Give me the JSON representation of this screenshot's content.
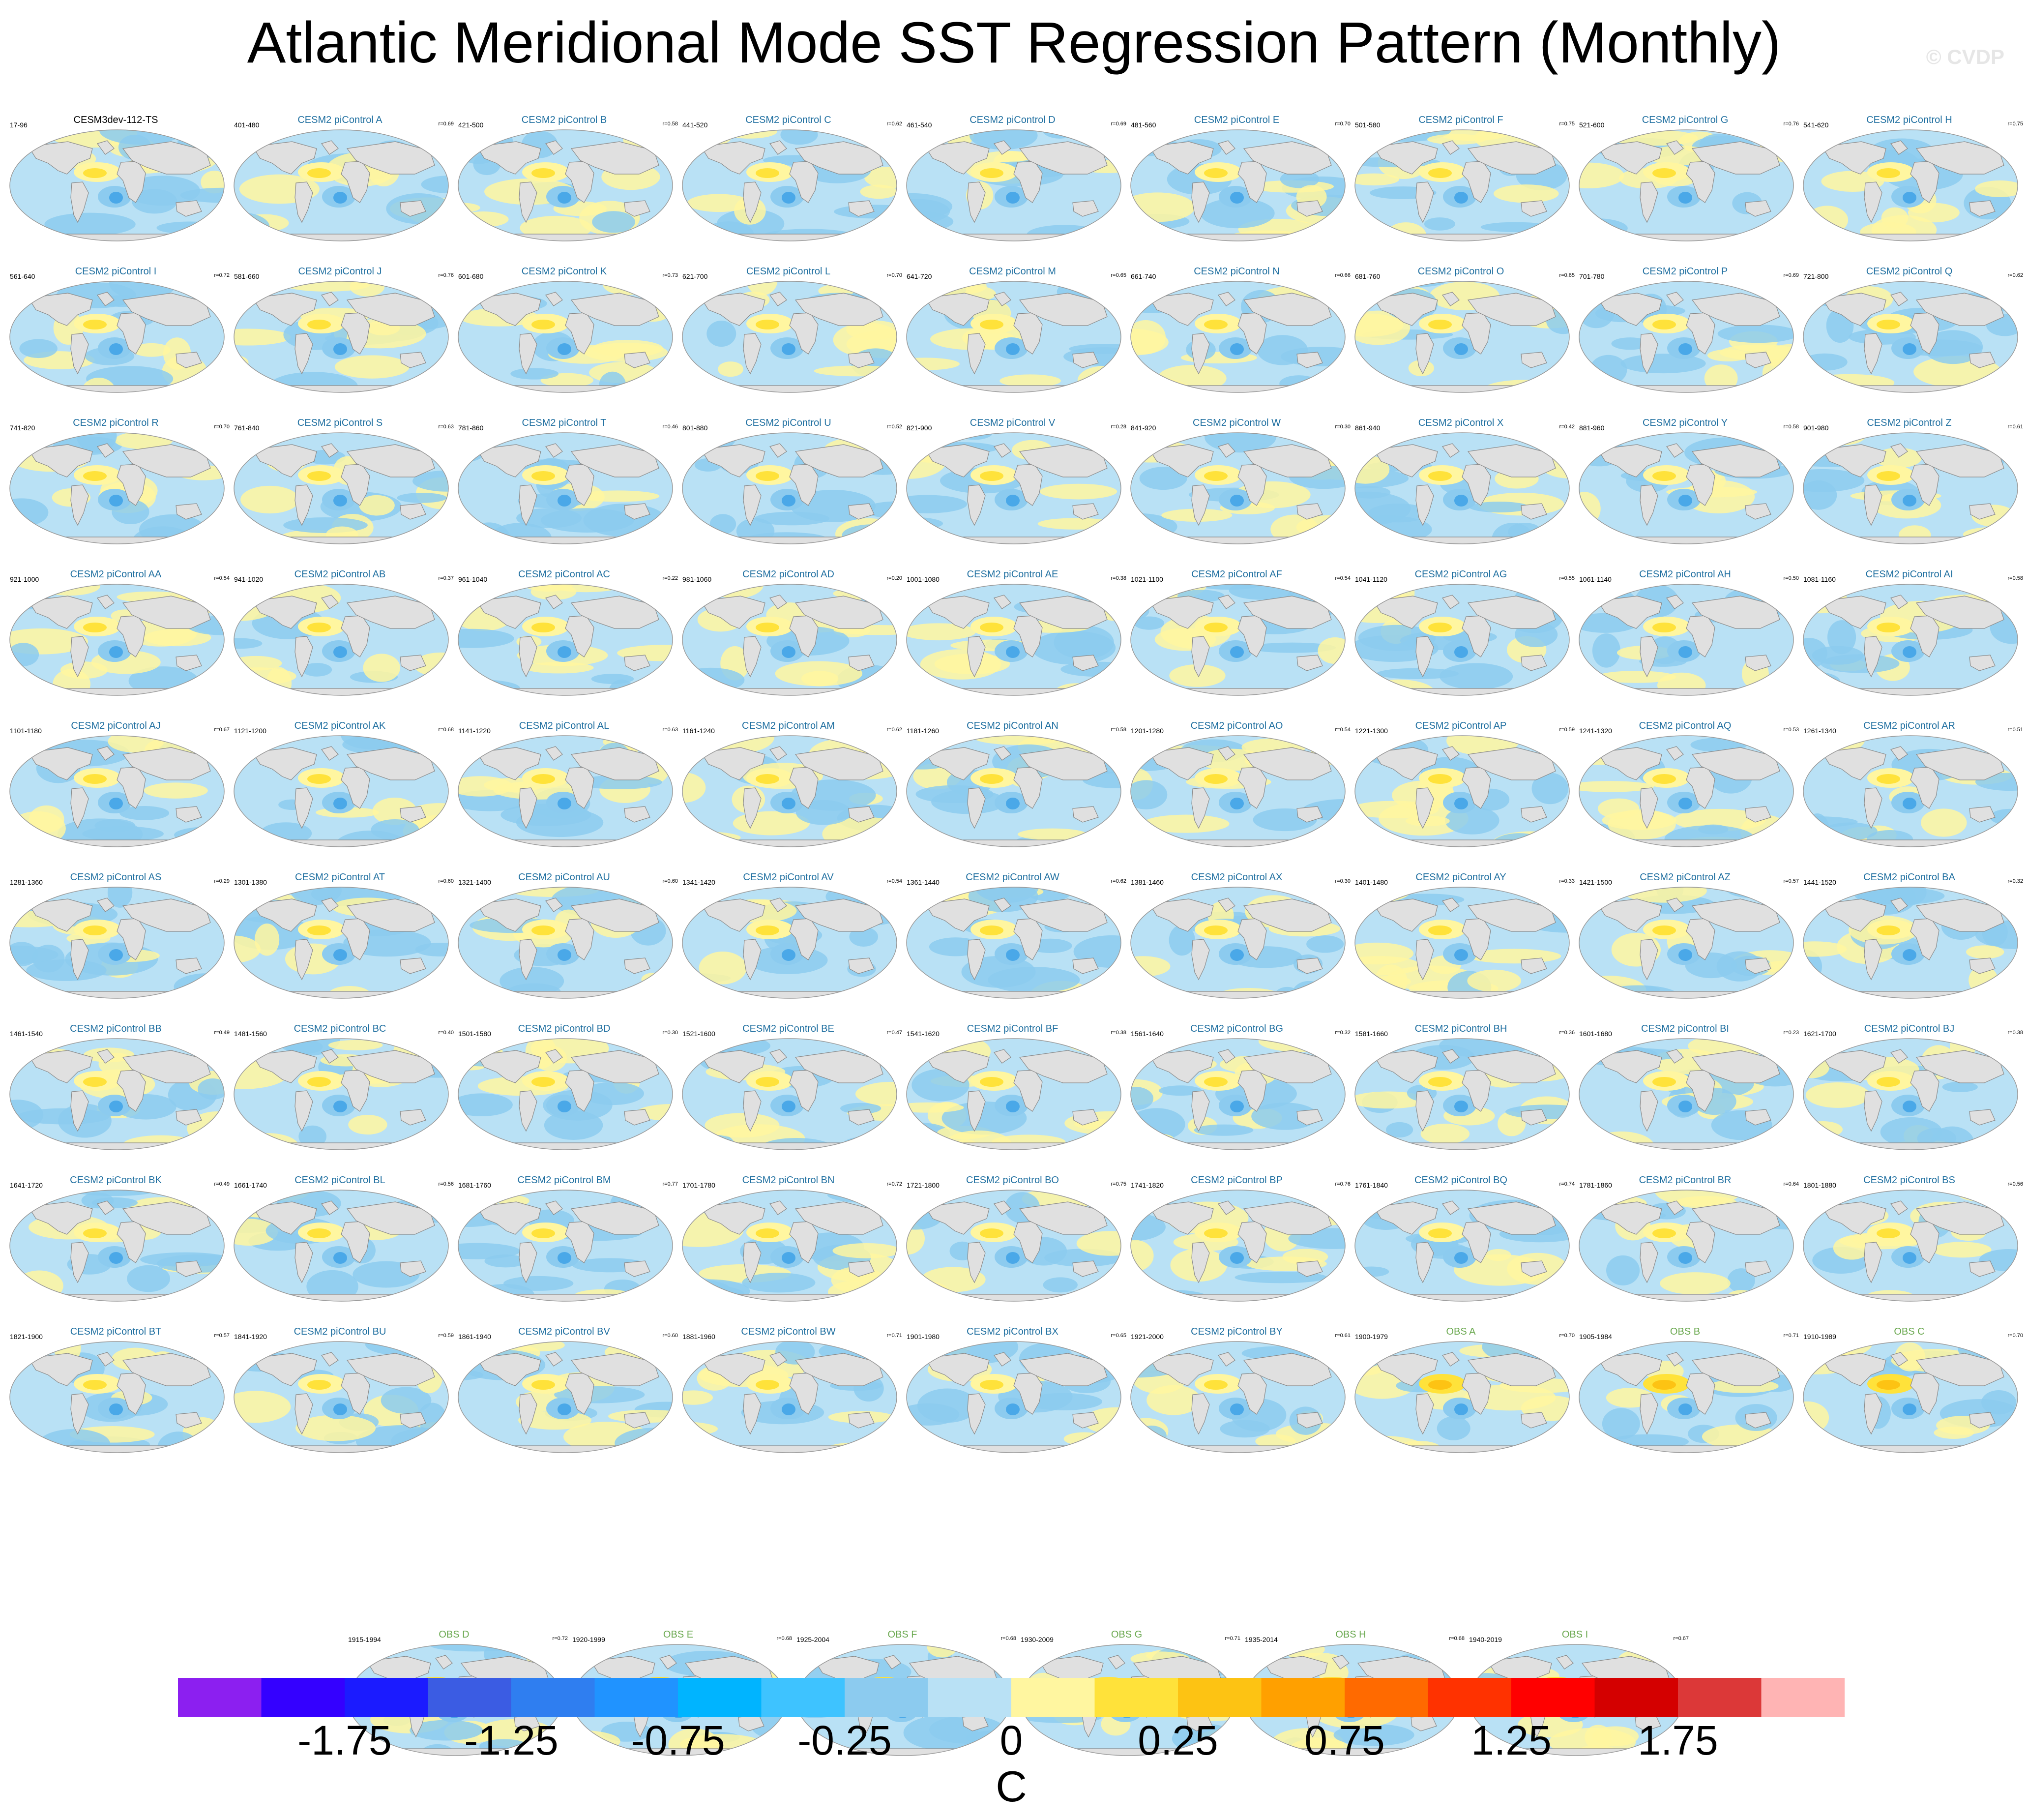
{
  "title": "Atlantic Meridional Mode SST Regression Pattern (Monthly)",
  "watermark": "© CVDP",
  "colors": {
    "model_title": "#1f6fa0",
    "obs_title": "#6aa84f",
    "land": "#e0e0e0",
    "ocean_neutral": "#b9e1f5",
    "positive_weak": "#fff6a0",
    "positive_mod": "#ffe23a",
    "negative_mod": "#8ccbef",
    "negative_strong": "#4aa8e8"
  },
  "chart_data": {
    "type": "map-grid",
    "variable": "SST regression on AMM index",
    "panels": [
      {
        "title": "CESM3dev-112-TS",
        "years": "17-96",
        "r": "",
        "kind": "ref"
      },
      {
        "title": "CESM2 piControl A",
        "years": "401-480",
        "r": "r=0.69",
        "kind": "model"
      },
      {
        "title": "CESM2 piControl B",
        "years": "421-500",
        "r": "r=0.58",
        "kind": "model"
      },
      {
        "title": "CESM2 piControl C",
        "years": "441-520",
        "r": "r=0.62",
        "kind": "model"
      },
      {
        "title": "CESM2 piControl D",
        "years": "461-540",
        "r": "r=0.69",
        "kind": "model"
      },
      {
        "title": "CESM2 piControl E",
        "years": "481-560",
        "r": "r=0.70",
        "kind": "model"
      },
      {
        "title": "CESM2 piControl F",
        "years": "501-580",
        "r": "r=0.75",
        "kind": "model"
      },
      {
        "title": "CESM2 piControl G",
        "years": "521-600",
        "r": "r=0.76",
        "kind": "model"
      },
      {
        "title": "CESM2 piControl H",
        "years": "541-620",
        "r": "r=0.75",
        "kind": "model"
      },
      {
        "title": "CESM2 piControl I",
        "years": "561-640",
        "r": "r=0.72",
        "kind": "model"
      },
      {
        "title": "CESM2 piControl J",
        "years": "581-660",
        "r": "r=0.76",
        "kind": "model"
      },
      {
        "title": "CESM2 piControl K",
        "years": "601-680",
        "r": "r=0.73",
        "kind": "model"
      },
      {
        "title": "CESM2 piControl L",
        "years": "621-700",
        "r": "r=0.70",
        "kind": "model"
      },
      {
        "title": "CESM2 piControl M",
        "years": "641-720",
        "r": "r=0.65",
        "kind": "model"
      },
      {
        "title": "CESM2 piControl N",
        "years": "661-740",
        "r": "r=0.66",
        "kind": "model"
      },
      {
        "title": "CESM2 piControl O",
        "years": "681-760",
        "r": "r=0.65",
        "kind": "model"
      },
      {
        "title": "CESM2 piControl P",
        "years": "701-780",
        "r": "r=0.69",
        "kind": "model"
      },
      {
        "title": "CESM2 piControl Q",
        "years": "721-800",
        "r": "r=0.62",
        "kind": "model"
      },
      {
        "title": "CESM2 piControl R",
        "years": "741-820",
        "r": "r=0.70",
        "kind": "model"
      },
      {
        "title": "CESM2 piControl S",
        "years": "761-840",
        "r": "r=0.63",
        "kind": "model"
      },
      {
        "title": "CESM2 piControl T",
        "years": "781-860",
        "r": "r=0.46",
        "kind": "model"
      },
      {
        "title": "CESM2 piControl U",
        "years": "801-880",
        "r": "r=0.52",
        "kind": "model"
      },
      {
        "title": "CESM2 piControl V",
        "years": "821-900",
        "r": "r=0.28",
        "kind": "model"
      },
      {
        "title": "CESM2 piControl W",
        "years": "841-920",
        "r": "r=0.30",
        "kind": "model"
      },
      {
        "title": "CESM2 piControl X",
        "years": "861-940",
        "r": "r=0.42",
        "kind": "model"
      },
      {
        "title": "CESM2 piControl Y",
        "years": "881-960",
        "r": "r=0.58",
        "kind": "model"
      },
      {
        "title": "CESM2 piControl Z",
        "years": "901-980",
        "r": "r=0.61",
        "kind": "model"
      },
      {
        "title": "CESM2 piControl AA",
        "years": "921-1000",
        "r": "r=0.54",
        "kind": "model"
      },
      {
        "title": "CESM2 piControl AB",
        "years": "941-1020",
        "r": "r=0.37",
        "kind": "model"
      },
      {
        "title": "CESM2 piControl AC",
        "years": "961-1040",
        "r": "r=0.22",
        "kind": "model"
      },
      {
        "title": "CESM2 piControl AD",
        "years": "981-1060",
        "r": "r=0.20",
        "kind": "model"
      },
      {
        "title": "CESM2 piControl AE",
        "years": "1001-1080",
        "r": "r=0.38",
        "kind": "model"
      },
      {
        "title": "CESM2 piControl AF",
        "years": "1021-1100",
        "r": "r=0.54",
        "kind": "model"
      },
      {
        "title": "CESM2 piControl AG",
        "years": "1041-1120",
        "r": "r=0.55",
        "kind": "model"
      },
      {
        "title": "CESM2 piControl AH",
        "years": "1061-1140",
        "r": "r=0.50",
        "kind": "model"
      },
      {
        "title": "CESM2 piControl AI",
        "years": "1081-1160",
        "r": "r=0.58",
        "kind": "model"
      },
      {
        "title": "CESM2 piControl AJ",
        "years": "1101-1180",
        "r": "r=0.67",
        "kind": "model"
      },
      {
        "title": "CESM2 piControl AK",
        "years": "1121-1200",
        "r": "r=0.68",
        "kind": "model"
      },
      {
        "title": "CESM2 piControl AL",
        "years": "1141-1220",
        "r": "r=0.63",
        "kind": "model"
      },
      {
        "title": "CESM2 piControl AM",
        "years": "1161-1240",
        "r": "r=0.62",
        "kind": "model"
      },
      {
        "title": "CESM2 piControl AN",
        "years": "1181-1260",
        "r": "r=0.58",
        "kind": "model"
      },
      {
        "title": "CESM2 piControl AO",
        "years": "1201-1280",
        "r": "r=0.54",
        "kind": "model"
      },
      {
        "title": "CESM2 piControl AP",
        "years": "1221-1300",
        "r": "r=0.59",
        "kind": "model"
      },
      {
        "title": "CESM2 piControl AQ",
        "years": "1241-1320",
        "r": "r=0.53",
        "kind": "model"
      },
      {
        "title": "CESM2 piControl AR",
        "years": "1261-1340",
        "r": "r=0.51",
        "kind": "model"
      },
      {
        "title": "CESM2 piControl AS",
        "years": "1281-1360",
        "r": "r=0.29",
        "kind": "model"
      },
      {
        "title": "CESM2 piControl AT",
        "years": "1301-1380",
        "r": "r=0.60",
        "kind": "model"
      },
      {
        "title": "CESM2 piControl AU",
        "years": "1321-1400",
        "r": "r=0.60",
        "kind": "model"
      },
      {
        "title": "CESM2 piControl AV",
        "years": "1341-1420",
        "r": "r=0.54",
        "kind": "model"
      },
      {
        "title": "CESM2 piControl AW",
        "years": "1361-1440",
        "r": "r=0.62",
        "kind": "model"
      },
      {
        "title": "CESM2 piControl AX",
        "years": "1381-1460",
        "r": "r=0.30",
        "kind": "model"
      },
      {
        "title": "CESM2 piControl AY",
        "years": "1401-1480",
        "r": "r=0.33",
        "kind": "model"
      },
      {
        "title": "CESM2 piControl AZ",
        "years": "1421-1500",
        "r": "r=0.57",
        "kind": "model"
      },
      {
        "title": "CESM2 piControl BA",
        "years": "1441-1520",
        "r": "r=0.32",
        "kind": "model"
      },
      {
        "title": "CESM2 piControl BB",
        "years": "1461-1540",
        "r": "r=0.49",
        "kind": "model"
      },
      {
        "title": "CESM2 piControl BC",
        "years": "1481-1560",
        "r": "r=0.40",
        "kind": "model"
      },
      {
        "title": "CESM2 piControl BD",
        "years": "1501-1580",
        "r": "r=0.30",
        "kind": "model"
      },
      {
        "title": "CESM2 piControl BE",
        "years": "1521-1600",
        "r": "r=0.47",
        "kind": "model"
      },
      {
        "title": "CESM2 piControl BF",
        "years": "1541-1620",
        "r": "r=0.38",
        "kind": "model"
      },
      {
        "title": "CESM2 piControl BG",
        "years": "1561-1640",
        "r": "r=0.32",
        "kind": "model"
      },
      {
        "title": "CESM2 piControl BH",
        "years": "1581-1660",
        "r": "r=0.36",
        "kind": "model"
      },
      {
        "title": "CESM2 piControl BI",
        "years": "1601-1680",
        "r": "r=0.23",
        "kind": "model"
      },
      {
        "title": "CESM2 piControl BJ",
        "years": "1621-1700",
        "r": "r=0.38",
        "kind": "model"
      },
      {
        "title": "CESM2 piControl BK",
        "years": "1641-1720",
        "r": "r=0.49",
        "kind": "model"
      },
      {
        "title": "CESM2 piControl BL",
        "years": "1661-1740",
        "r": "r=0.56",
        "kind": "model"
      },
      {
        "title": "CESM2 piControl BM",
        "years": "1681-1760",
        "r": "r=0.77",
        "kind": "model"
      },
      {
        "title": "CESM2 piControl BN",
        "years": "1701-1780",
        "r": "r=0.72",
        "kind": "model"
      },
      {
        "title": "CESM2 piControl BO",
        "years": "1721-1800",
        "r": "r=0.75",
        "kind": "model"
      },
      {
        "title": "CESM2 piControl BP",
        "years": "1741-1820",
        "r": "r=0.76",
        "kind": "model"
      },
      {
        "title": "CESM2 piControl BQ",
        "years": "1761-1840",
        "r": "r=0.74",
        "kind": "model"
      },
      {
        "title": "CESM2 piControl BR",
        "years": "1781-1860",
        "r": "r=0.64",
        "kind": "model"
      },
      {
        "title": "CESM2 piControl BS",
        "years": "1801-1880",
        "r": "r=0.56",
        "kind": "model"
      },
      {
        "title": "CESM2 piControl BT",
        "years": "1821-1900",
        "r": "r=0.57",
        "kind": "model"
      },
      {
        "title": "CESM2 piControl BU",
        "years": "1841-1920",
        "r": "r=0.59",
        "kind": "model"
      },
      {
        "title": "CESM2 piControl BV",
        "years": "1861-1940",
        "r": "r=0.60",
        "kind": "model"
      },
      {
        "title": "CESM2 piControl BW",
        "years": "1881-1960",
        "r": "r=0.71",
        "kind": "model"
      },
      {
        "title": "CESM2 piControl BX",
        "years": "1901-1980",
        "r": "r=0.65",
        "kind": "model"
      },
      {
        "title": "CESM2 piControl BY",
        "years": "1921-2000",
        "r": "r=0.61",
        "kind": "model"
      },
      {
        "title": "OBS A",
        "years": "1900-1979",
        "r": "r=0.70",
        "kind": "obs"
      },
      {
        "title": "OBS B",
        "years": "1905-1984",
        "r": "r=0.71",
        "kind": "obs"
      },
      {
        "title": "OBS C",
        "years": "1910-1989",
        "r": "r=0.70",
        "kind": "obs"
      },
      {
        "title": "OBS D",
        "years": "1915-1994",
        "r": "r=0.72",
        "kind": "obs"
      },
      {
        "title": "OBS E",
        "years": "1920-1999",
        "r": "r=0.68",
        "kind": "obs"
      },
      {
        "title": "OBS F",
        "years": "1925-2004",
        "r": "r=0.68",
        "kind": "obs"
      },
      {
        "title": "OBS G",
        "years": "1930-2009",
        "r": "r=0.71",
        "kind": "obs"
      },
      {
        "title": "OBS H",
        "years": "1935-2014",
        "r": "r=0.68",
        "kind": "obs"
      },
      {
        "title": "OBS I",
        "years": "1940-2019",
        "r": "r=0.67",
        "kind": "obs"
      }
    ],
    "colorbar": {
      "levels": [
        -2,
        -1.75,
        -1.5,
        -1.25,
        -1,
        -0.75,
        -0.5,
        -0.25,
        -0.1,
        0,
        0.1,
        0.25,
        0.5,
        0.75,
        1,
        1.25,
        1.5,
        1.75,
        2
      ],
      "colors": [
        "#8c1ff0",
        "#3400ff",
        "#1b1bff",
        "#3b5ce3",
        "#2f7ef0",
        "#2093ff",
        "#00b4ff",
        "#3ec3ff",
        "#8ccbef",
        "#b9e1f5",
        "#fff6a0",
        "#ffe23a",
        "#fdc313",
        "#ffa000",
        "#ff6a00",
        "#ff3200",
        "#ff0000",
        "#d40000",
        "#dc3838",
        "#ffb4b4"
      ],
      "tick_labels": [
        "-1.75",
        "-1.25",
        "-0.75",
        "-0.25",
        "0",
        "0.25",
        "0.75",
        "1.25",
        "1.75"
      ],
      "tick_values": [
        -1.75,
        -1.25,
        -0.75,
        -0.25,
        0,
        0.25,
        0.75,
        1.25,
        1.75
      ],
      "unit": "C"
    }
  }
}
